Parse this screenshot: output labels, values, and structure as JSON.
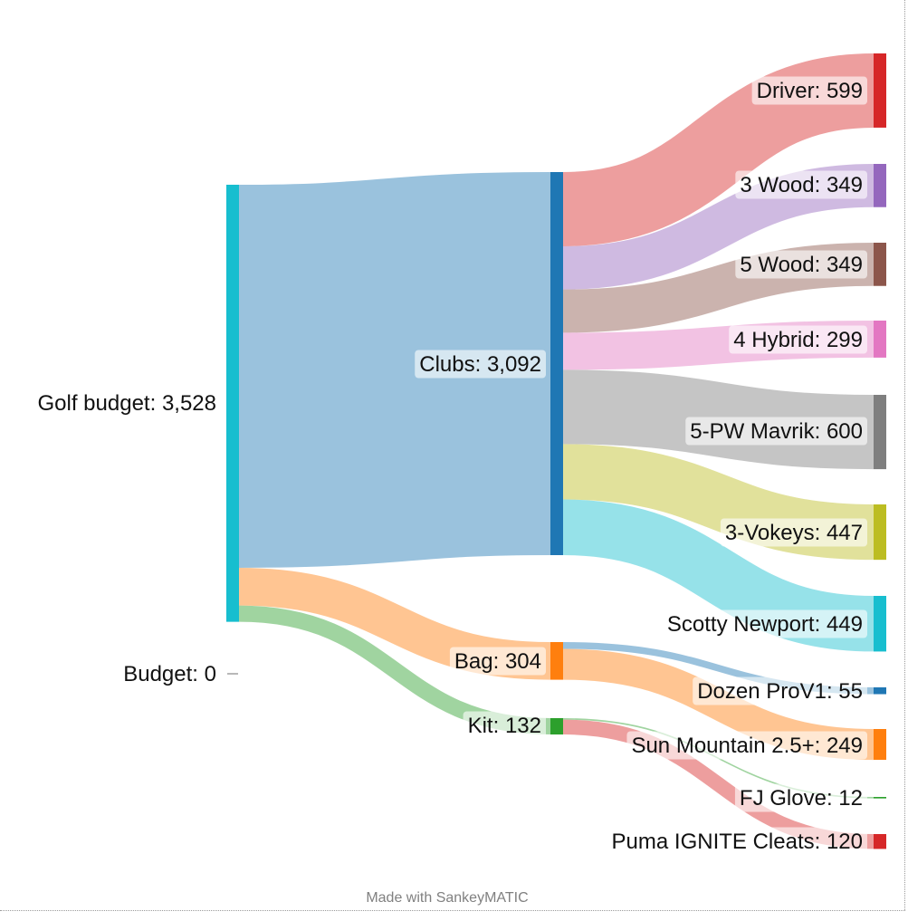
{
  "chart_data": {
    "type": "sankey",
    "nodes": [
      {
        "id": "golf_budget",
        "label": "Golf budget",
        "value": "3,528",
        "color": "#17becf"
      },
      {
        "id": "budget",
        "label": "Budget",
        "value": "0",
        "color": "#888888"
      },
      {
        "id": "clubs",
        "label": "Clubs",
        "value": "3,092",
        "color": "#1f77b4"
      },
      {
        "id": "bag",
        "label": "Bag",
        "value": "304",
        "color": "#ff7f0e"
      },
      {
        "id": "kit",
        "label": "Kit",
        "value": "132",
        "color": "#2ca02c"
      },
      {
        "id": "driver",
        "label": "Driver",
        "value": "599",
        "color": "#d62728"
      },
      {
        "id": "wood3",
        "label": "3 Wood",
        "value": "349",
        "color": "#9467bd"
      },
      {
        "id": "wood5",
        "label": "5 Wood",
        "value": "349",
        "color": "#8c564b"
      },
      {
        "id": "hybrid4",
        "label": "4 Hybrid",
        "value": "299",
        "color": "#e377c2"
      },
      {
        "id": "mavrik",
        "label": "5-PW Mavrik",
        "value": "600",
        "color": "#7f7f7f"
      },
      {
        "id": "vokeys",
        "label": "3-Vokeys",
        "value": "447",
        "color": "#bcbd22"
      },
      {
        "id": "scotty",
        "label": "Scotty Newport",
        "value": "449",
        "color": "#17becf"
      },
      {
        "id": "provi",
        "label": "Dozen ProV1",
        "value": "55",
        "color": "#1f77b4"
      },
      {
        "id": "sunmtn",
        "label": "Sun Mountain 2.5+",
        "value": "249",
        "color": "#ff7f0e"
      },
      {
        "id": "glove",
        "label": "FJ Glove",
        "value": "12",
        "color": "#2ca02c"
      },
      {
        "id": "cleats",
        "label": "Puma IGNITE Cleats",
        "value": "120",
        "color": "#d62728"
      }
    ],
    "links": [
      {
        "source": "golf_budget",
        "target": "clubs",
        "value": 3092
      },
      {
        "source": "golf_budget",
        "target": "bag",
        "value": 304
      },
      {
        "source": "golf_budget",
        "target": "kit",
        "value": 132
      },
      {
        "source": "clubs",
        "target": "driver",
        "value": 599
      },
      {
        "source": "clubs",
        "target": "wood3",
        "value": 349
      },
      {
        "source": "clubs",
        "target": "wood5",
        "value": 349
      },
      {
        "source": "clubs",
        "target": "hybrid4",
        "value": 299
      },
      {
        "source": "clubs",
        "target": "mavrik",
        "value": 600
      },
      {
        "source": "clubs",
        "target": "vokeys",
        "value": 447
      },
      {
        "source": "clubs",
        "target": "scotty",
        "value": 449
      },
      {
        "source": "bag",
        "target": "provi",
        "value": 55
      },
      {
        "source": "bag",
        "target": "sunmtn",
        "value": 249
      },
      {
        "source": "kit",
        "target": "glove",
        "value": 12
      },
      {
        "source": "kit",
        "target": "cleats",
        "value": 120
      }
    ]
  },
  "credit": "Made with SankeyMATIC"
}
